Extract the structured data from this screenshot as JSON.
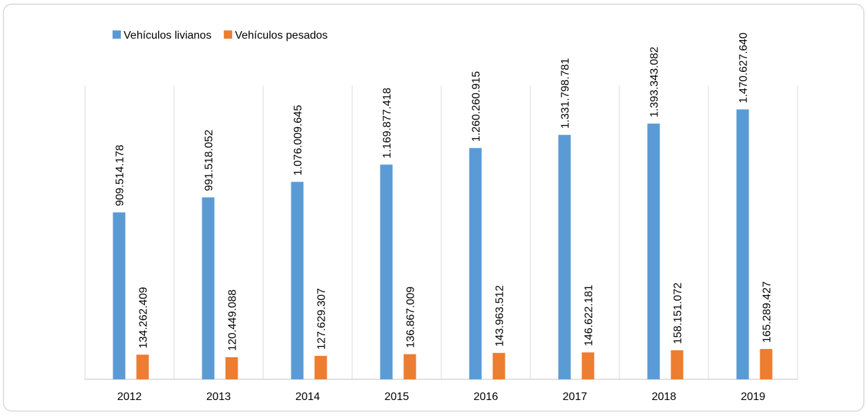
{
  "chart_data": {
    "type": "bar",
    "categories": [
      "2012",
      "2013",
      "2014",
      "2015",
      "2016",
      "2017",
      "2018",
      "2019"
    ],
    "series": [
      {
        "name": "Vehículos livianos",
        "color": "#5b9bd5",
        "values": [
          909514178,
          991518052,
          1076009645,
          1169877418,
          1260260915,
          1331798781,
          1393343082,
          1470627640
        ],
        "value_labels": [
          "909.514.178",
          "991.518.052",
          "1.076.009.645",
          "1.169.877.418",
          "1.260.260.915",
          "1.331.798.781",
          "1.393.343.082",
          "1.470.627.640"
        ]
      },
      {
        "name": "Vehículos pesados",
        "color": "#ed7d31",
        "values": [
          134262409,
          120449088,
          127629307,
          136867009,
          143963512,
          146622181,
          158151072,
          165289427
        ],
        "value_labels": [
          "134.262.409",
          "120.449.088",
          "127.629.307",
          "136.867.009",
          "143.963.512",
          "146.622.181",
          "158.151.072",
          "165.289.427"
        ]
      }
    ],
    "ylim": [
      0,
      1600000000
    ],
    "legend": "top-left",
    "grid": true
  }
}
